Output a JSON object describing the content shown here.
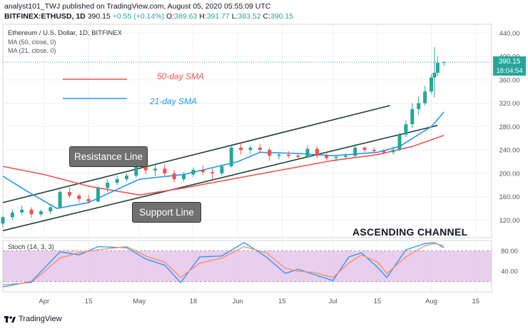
{
  "header": {
    "line1": "analyst101_TWJ published on TradingView.com, August 05, 2020 05:55:09 UTC",
    "line2_symbol": "BITFINEX:ETHUSD, 1D",
    "line2_price": "390.15",
    "line2_change": "+0.55 (+0.14%)",
    "line2_o_label": "O:",
    "line2_o": "389.63",
    "line2_h_label": "H:",
    "line2_h": "391.77",
    "line2_l_label": "L:",
    "line2_l": "383.52",
    "line2_c_label": "C:",
    "line2_c": "390.15"
  },
  "chart_title": "Ethereum / U.S. Dollar, 1D, BITFINEX",
  "ma_labels": [
    "MA (50, close, 0)",
    "MA (21, close, 0)"
  ],
  "legend": {
    "sma50": "50-day SMA",
    "sma21": "21-day SMA"
  },
  "annotations": {
    "resistance": "Resistance Line",
    "support": "Support Line",
    "channel": "ASCENDING CHANNEL"
  },
  "price_tag": {
    "price": "390.15",
    "countdown": "18:04:54"
  },
  "stoch_label": "Stoch (14, 3, 3)",
  "footer": {
    "brand": "TradingView"
  },
  "colors": {
    "up": "#26a69a",
    "down": "#ef5350",
    "sma50": "#ef5350",
    "sma21": "#2196f3",
    "channel": "#1b4332",
    "stochK": "#2196f3",
    "stochD": "#ff8a65",
    "stochBand": "#e1bee7"
  },
  "chart_data": {
    "type": "candlestick",
    "price_axis": {
      "ticks": [
        120,
        160,
        200,
        240,
        280,
        320,
        360,
        400,
        440
      ],
      "range": [
        90,
        455
      ]
    },
    "x_axis": {
      "ticks": [
        "Apr",
        "15",
        "May",
        "18",
        "Jun",
        "15",
        "Jul",
        "15",
        "Aug",
        "15"
      ],
      "start": "2020-03-19",
      "end": "2020-08-20"
    },
    "ohlc_dates": [
      "2020-03-19",
      "2020-03-22",
      "2020-03-25",
      "2020-03-28",
      "2020-03-31",
      "2020-04-03",
      "2020-04-06",
      "2020-04-09",
      "2020-04-12",
      "2020-04-15",
      "2020-04-18",
      "2020-04-21",
      "2020-04-24",
      "2020-04-27",
      "2020-04-30",
      "2020-05-03",
      "2020-05-06",
      "2020-05-09",
      "2020-05-12",
      "2020-05-15",
      "2020-05-18",
      "2020-05-21",
      "2020-05-24",
      "2020-05-27",
      "2020-05-30",
      "2020-06-02",
      "2020-06-05",
      "2020-06-08",
      "2020-06-11",
      "2020-06-14",
      "2020-06-17",
      "2020-06-20",
      "2020-06-23",
      "2020-06-26",
      "2020-06-29",
      "2020-07-02",
      "2020-07-05",
      "2020-07-08",
      "2020-07-11",
      "2020-07-14",
      "2020-07-17",
      "2020-07-20",
      "2020-07-22",
      "2020-07-24",
      "2020-07-26",
      "2020-07-28",
      "2020-07-30",
      "2020-08-01",
      "2020-08-02",
      "2020-08-03",
      "2020-08-05"
    ],
    "ohlc": [
      [
        114,
        128,
        108,
        125
      ],
      [
        125,
        138,
        120,
        133
      ],
      [
        133,
        145,
        128,
        138
      ],
      [
        138,
        142,
        124,
        130
      ],
      [
        130,
        138,
        126,
        135
      ],
      [
        135,
        148,
        131,
        142
      ],
      [
        142,
        172,
        139,
        168
      ],
      [
        168,
        176,
        158,
        162
      ],
      [
        162,
        165,
        150,
        156
      ],
      [
        156,
        163,
        148,
        152
      ],
      [
        152,
        178,
        150,
        175
      ],
      [
        175,
        190,
        168,
        184
      ],
      [
        184,
        196,
        180,
        190
      ],
      [
        190,
        200,
        186,
        196
      ],
      [
        196,
        218,
        192,
        212
      ],
      [
        212,
        220,
        198,
        205
      ],
      [
        205,
        214,
        196,
        208
      ],
      [
        208,
        216,
        196,
        200
      ],
      [
        200,
        206,
        184,
        190
      ],
      [
        190,
        202,
        186,
        198
      ],
      [
        198,
        210,
        194,
        206
      ],
      [
        206,
        214,
        198,
        202
      ],
      [
        202,
        208,
        190,
        200
      ],
      [
        200,
        216,
        196,
        212
      ],
      [
        212,
        248,
        210,
        244
      ],
      [
        244,
        252,
        232,
        240
      ],
      [
        240,
        248,
        234,
        244
      ],
      [
        244,
        250,
        236,
        240
      ],
      [
        240,
        244,
        222,
        230
      ],
      [
        230,
        236,
        224,
        232
      ],
      [
        232,
        238,
        226,
        230
      ],
      [
        230,
        234,
        224,
        228
      ],
      [
        228,
        248,
        226,
        242
      ],
      [
        242,
        246,
        226,
        230
      ],
      [
        230,
        234,
        222,
        226
      ],
      [
        226,
        232,
        220,
        228
      ],
      [
        228,
        234,
        224,
        230
      ],
      [
        230,
        250,
        228,
        244
      ],
      [
        244,
        246,
        236,
        240
      ],
      [
        240,
        244,
        234,
        238
      ],
      [
        238,
        242,
        232,
        236
      ],
      [
        236,
        246,
        232,
        240
      ],
      [
        240,
        270,
        238,
        266
      ],
      [
        266,
        290,
        262,
        284
      ],
      [
        284,
        320,
        278,
        310
      ],
      [
        310,
        332,
        300,
        320
      ],
      [
        320,
        350,
        316,
        340
      ],
      [
        340,
        370,
        336,
        364
      ],
      [
        364,
        416,
        330,
        372
      ],
      [
        372,
        400,
        366,
        389
      ],
      [
        389.63,
        391.77,
        383.52,
        390.15
      ]
    ],
    "sma50": [
      [
        "2020-03-19",
        212
      ],
      [
        "2020-04-01",
        198
      ],
      [
        "2020-04-15",
        178
      ],
      [
        "2020-05-01",
        163
      ],
      [
        "2020-05-15",
        175
      ],
      [
        "2020-06-01",
        192
      ],
      [
        "2020-06-15",
        206
      ],
      [
        "2020-07-01",
        222
      ],
      [
        "2020-07-15",
        232
      ],
      [
        "2020-07-26",
        246
      ],
      [
        "2020-08-05",
        265
      ]
    ],
    "sma21": [
      [
        "2020-03-19",
        195
      ],
      [
        "2020-03-28",
        165
      ],
      [
        "2020-04-05",
        140
      ],
      [
        "2020-04-15",
        150
      ],
      [
        "2020-05-01",
        190
      ],
      [
        "2020-05-15",
        198
      ],
      [
        "2020-06-01",
        220
      ],
      [
        "2020-06-08",
        236
      ],
      [
        "2020-06-20",
        234
      ],
      [
        "2020-07-01",
        230
      ],
      [
        "2020-07-15",
        236
      ],
      [
        "2020-07-22",
        246
      ],
      [
        "2020-08-01",
        280
      ],
      [
        "2020-08-05",
        305
      ]
    ],
    "resistance_line": [
      [
        "2020-03-19",
        150
      ],
      [
        "2020-07-19",
        316
      ]
    ],
    "support_line": [
      [
        "2020-03-19",
        102
      ],
      [
        "2020-08-03",
        282
      ]
    ],
    "stoch_axis": {
      "ticks": [
        40,
        80
      ],
      "range": [
        0,
        100
      ],
      "band": [
        20,
        80
      ]
    },
    "stoch_k": [
      [
        "2020-03-19",
        10
      ],
      [
        "2020-03-28",
        20
      ],
      [
        "2020-04-06",
        78
      ],
      [
        "2020-04-12",
        72
      ],
      [
        "2020-04-18",
        88
      ],
      [
        "2020-04-27",
        86
      ],
      [
        "2020-05-03",
        64
      ],
      [
        "2020-05-09",
        52
      ],
      [
        "2020-05-14",
        18
      ],
      [
        "2020-05-20",
        68
      ],
      [
        "2020-05-27",
        70
      ],
      [
        "2020-06-03",
        96
      ],
      [
        "2020-06-10",
        68
      ],
      [
        "2020-06-16",
        36
      ],
      [
        "2020-06-20",
        44
      ],
      [
        "2020-06-25",
        34
      ],
      [
        "2020-07-01",
        22
      ],
      [
        "2020-07-06",
        68
      ],
      [
        "2020-07-10",
        76
      ],
      [
        "2020-07-15",
        48
      ],
      [
        "2020-07-18",
        28
      ],
      [
        "2020-07-24",
        82
      ],
      [
        "2020-07-30",
        94
      ],
      [
        "2020-08-02",
        96
      ],
      [
        "2020-08-05",
        86
      ]
    ],
    "stoch_d": [
      [
        "2020-03-19",
        14
      ],
      [
        "2020-03-28",
        18
      ],
      [
        "2020-04-06",
        66
      ],
      [
        "2020-04-12",
        76
      ],
      [
        "2020-04-18",
        82
      ],
      [
        "2020-04-27",
        88
      ],
      [
        "2020-05-03",
        70
      ],
      [
        "2020-05-09",
        58
      ],
      [
        "2020-05-14",
        28
      ],
      [
        "2020-05-20",
        56
      ],
      [
        "2020-05-27",
        66
      ],
      [
        "2020-06-03",
        88
      ],
      [
        "2020-06-10",
        76
      ],
      [
        "2020-06-16",
        46
      ],
      [
        "2020-06-20",
        40
      ],
      [
        "2020-06-25",
        38
      ],
      [
        "2020-07-01",
        28
      ],
      [
        "2020-07-06",
        56
      ],
      [
        "2020-07-10",
        72
      ],
      [
        "2020-07-15",
        58
      ],
      [
        "2020-07-18",
        36
      ],
      [
        "2020-07-24",
        68
      ],
      [
        "2020-07-30",
        90
      ],
      [
        "2020-08-02",
        94
      ],
      [
        "2020-08-05",
        90
      ]
    ]
  }
}
